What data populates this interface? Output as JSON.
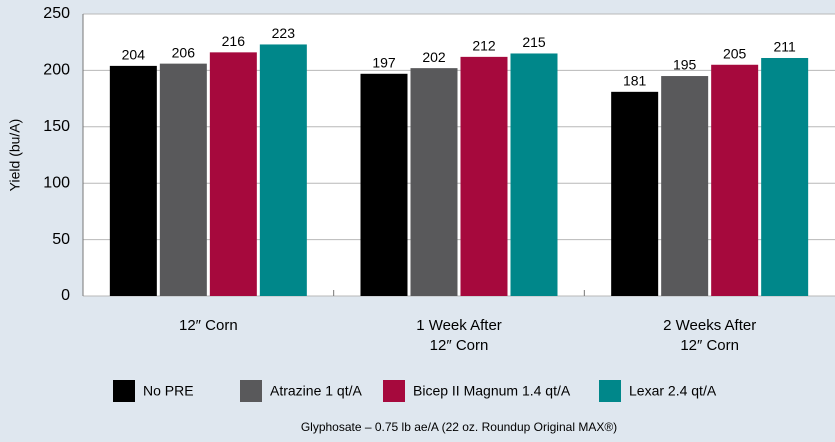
{
  "chart_data": {
    "type": "bar",
    "y_label": "Yield (bu/A)",
    "x_label": "Glyphosate – 0.75 lb ae/A (22 oz. Roundup Original MAX®)",
    "categories": [
      "12″ Corn",
      "1 Week After\n12″ Corn",
      "2 Weeks After\n12″ Corn"
    ],
    "series": [
      {
        "name": "No PRE",
        "color": "#000000",
        "values": [
          204,
          197,
          181
        ]
      },
      {
        "name": "Atrazine 1 qt/A",
        "color": "#59595b",
        "values": [
          206,
          202,
          195
        ]
      },
      {
        "name": "Bicep II Magnum 1.4 qt/A",
        "color": "#a6093d",
        "values": [
          216,
          212,
          205
        ]
      },
      {
        "name": "Lexar 2.4 qt/A",
        "color": "#00878a",
        "values": [
          223,
          215,
          211
        ]
      }
    ],
    "ylim": [
      0,
      250
    ],
    "yticks": [
      0,
      50,
      100,
      150,
      200,
      250
    ],
    "grid": true
  }
}
